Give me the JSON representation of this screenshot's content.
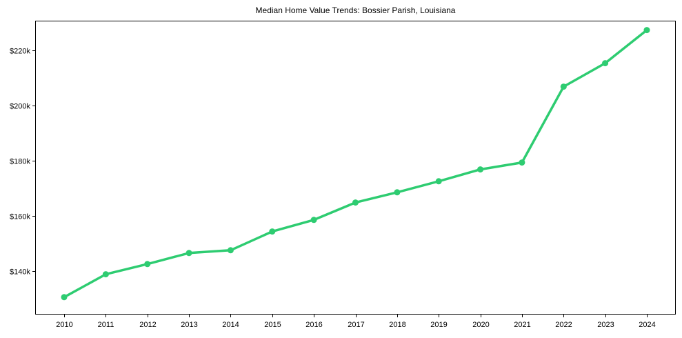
{
  "chart_data": {
    "type": "line",
    "title": "Median Home Value Trends: Bossier Parish, Louisiana",
    "xlabel": "",
    "ylabel": "",
    "x": [
      2010,
      2011,
      2012,
      2013,
      2014,
      2015,
      2016,
      2017,
      2018,
      2019,
      2020,
      2021,
      2022,
      2023,
      2024
    ],
    "x_tick_labels": [
      "2010",
      "2011",
      "2012",
      "2013",
      "2014",
      "2015",
      "2016",
      "2017",
      "2018",
      "2019",
      "2020",
      "2021",
      "2022",
      "2023",
      "2024"
    ],
    "series": [
      {
        "name": "Median Home Value",
        "color": "#2ecc71",
        "marker": "circle",
        "values": [
          130500,
          138800,
          142500,
          146500,
          147500,
          154300,
          158500,
          164800,
          168500,
          172500,
          176800,
          179300,
          206800,
          215300,
          227300
        ]
      }
    ],
    "y_ticks": [
      140000,
      160000,
      180000,
      200000,
      220000
    ],
    "y_tick_labels": [
      "$140k",
      "$160k",
      "$180k",
      "$200k",
      "$220k"
    ],
    "ylim": [
      124200,
      230700
    ],
    "grid": false,
    "legend": null
  }
}
